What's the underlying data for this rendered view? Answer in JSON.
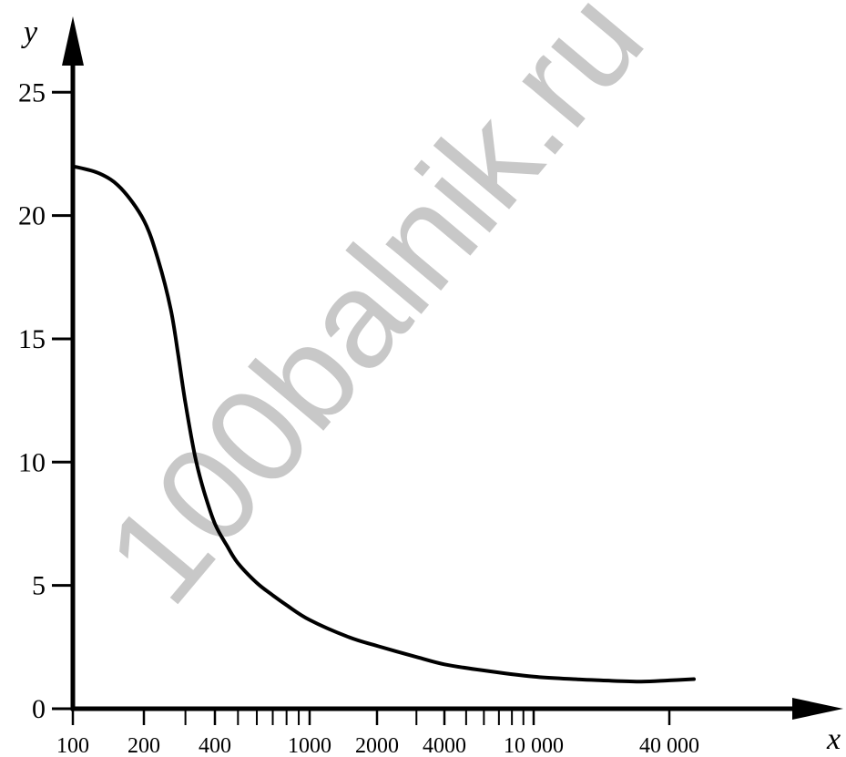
{
  "watermark": "100balnik.ru",
  "chart_data": {
    "type": "line",
    "title": "",
    "xlabel": "x",
    "ylabel": "y",
    "x_scale": "log",
    "xlim": [
      100,
      40000
    ],
    "ylim": [
      0,
      25
    ],
    "grid": false,
    "x_ticks": [
      100,
      200,
      400,
      1000,
      2000,
      4000,
      10000,
      40000
    ],
    "x_tick_labels": [
      "100",
      "200",
      "400",
      "1000",
      "2000",
      "4000",
      "10 000",
      "40 000"
    ],
    "x_minor_ticks": [
      300,
      500,
      600,
      700,
      800,
      900,
      3000,
      5000,
      6000,
      7000,
      8000,
      9000
    ],
    "y_ticks": [
      0,
      5,
      10,
      15,
      20,
      25
    ],
    "y_tick_labels": [
      "0",
      "5",
      "10",
      "15",
      "20",
      "25"
    ],
    "series": [
      {
        "x": [
          100,
          130,
          160,
          200,
          230,
          260,
          280,
          300,
          330,
          360,
          400,
          450,
          500,
          600,
          700,
          800,
          1000,
          1500,
          2000,
          3000,
          4000,
          6000,
          10000,
          15000,
          20000,
          30000,
          40000,
          50000
        ],
        "y": [
          22,
          21.7,
          21.1,
          19.8,
          18.2,
          16.2,
          14.3,
          12.4,
          10.2,
          8.8,
          7.5,
          6.6,
          5.9,
          5.1,
          4.6,
          4.2,
          3.6,
          2.9,
          2.55,
          2.1,
          1.8,
          1.55,
          1.3,
          1.2,
          1.15,
          1.1,
          1.15,
          1.2
        ]
      }
    ]
  }
}
